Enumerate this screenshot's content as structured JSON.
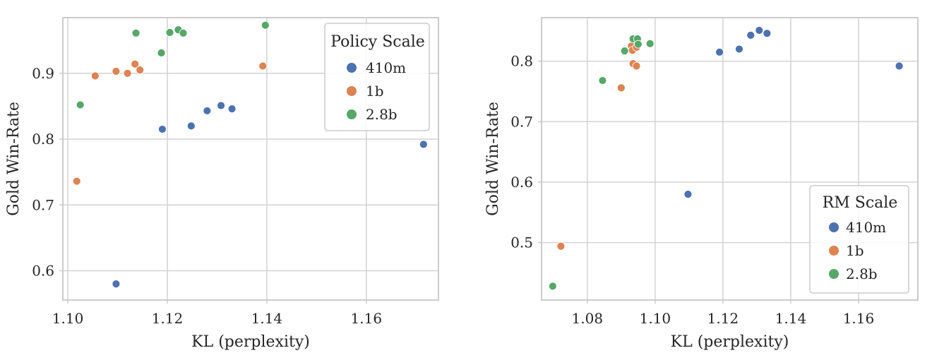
{
  "colors": {
    "410m": "#4c72b0",
    "1b": "#dd8452",
    "2.8b": "#55a868",
    "grid": "#d5d5d5",
    "spine": "#cccccc"
  },
  "chart_data": [
    {
      "type": "scatter",
      "xlabel": "KL (perplexity)",
      "ylabel": "Gold Win-Rate",
      "xlim": [
        1.099,
        1.1745
      ],
      "ylim": [
        0.5555,
        0.9845
      ],
      "xticks": [
        1.1,
        1.12,
        1.14,
        1.16
      ],
      "xtick_labels": [
        "1.10",
        "1.12",
        "1.14",
        "1.16"
      ],
      "yticks": [
        0.6,
        0.7,
        0.8,
        0.9
      ],
      "ytick_labels": [
        "0.6",
        "0.7",
        "0.8",
        "0.9"
      ],
      "grid": true,
      "legend": {
        "title": "Policy Scale",
        "position": "top-right"
      },
      "series": [
        {
          "name": "410m",
          "points": [
            [
              1.1097,
              0.58
            ],
            [
              1.119,
              0.815
            ],
            [
              1.1248,
              0.82
            ],
            [
              1.128,
              0.843
            ],
            [
              1.1308,
              0.851
            ],
            [
              1.133,
              0.846
            ],
            [
              1.1715,
              0.792
            ]
          ]
        },
        {
          "name": "1b",
          "points": [
            [
              1.1018,
              0.736
            ],
            [
              1.1055,
              0.896
            ],
            [
              1.1097,
              0.903
            ],
            [
              1.112,
              0.9
            ],
            [
              1.1135,
              0.914
            ],
            [
              1.1145,
              0.905
            ],
            [
              1.1392,
              0.911
            ]
          ]
        },
        {
          "name": "2.8b",
          "points": [
            [
              1.1025,
              0.852
            ],
            [
              1.1137,
              0.961
            ],
            [
              1.1188,
              0.931
            ],
            [
              1.1205,
              0.962
            ],
            [
              1.1222,
              0.966
            ],
            [
              1.1232,
              0.961
            ],
            [
              1.1397,
              0.973
            ]
          ]
        }
      ]
    },
    {
      "type": "scatter",
      "xlabel": "KL (perplexity)",
      "ylabel": "Gold Win-Rate",
      "xlim": [
        1.0665,
        1.1775
      ],
      "ylim": [
        0.405,
        0.872
      ],
      "xticks": [
        1.08,
        1.1,
        1.12,
        1.14,
        1.16
      ],
      "xtick_labels": [
        "1.08",
        "1.10",
        "1.12",
        "1.14",
        "1.16"
      ],
      "yticks": [
        0.5,
        0.6,
        0.7,
        0.8
      ],
      "ytick_labels": [
        "0.5",
        "0.6",
        "0.7",
        "0.8"
      ],
      "grid": true,
      "legend": {
        "title": "RM Scale",
        "position": "bottom-right"
      },
      "series": [
        {
          "name": "410m",
          "points": [
            [
              1.1097,
              0.58
            ],
            [
              1.119,
              0.815
            ],
            [
              1.1248,
              0.82
            ],
            [
              1.1282,
              0.843
            ],
            [
              1.1307,
              0.851
            ],
            [
              1.133,
              0.846
            ],
            [
              1.172,
              0.792
            ]
          ]
        },
        {
          "name": "1b",
          "points": [
            [
              1.0722,
              0.494
            ],
            [
              1.09,
              0.756
            ],
            [
              1.093,
              0.825
            ],
            [
              1.0933,
              0.818
            ],
            [
              1.0935,
              0.796
            ],
            [
              1.0945,
              0.823
            ],
            [
              1.0945,
              0.792
            ]
          ]
        },
        {
          "name": "2.8b",
          "points": [
            [
              1.0698,
              0.428
            ],
            [
              1.0845,
              0.768
            ],
            [
              1.091,
              0.817
            ],
            [
              1.0935,
              0.837
            ],
            [
              1.0948,
              0.837
            ],
            [
              1.095,
              0.828
            ],
            [
              1.0985,
              0.829
            ]
          ]
        }
      ]
    }
  ]
}
